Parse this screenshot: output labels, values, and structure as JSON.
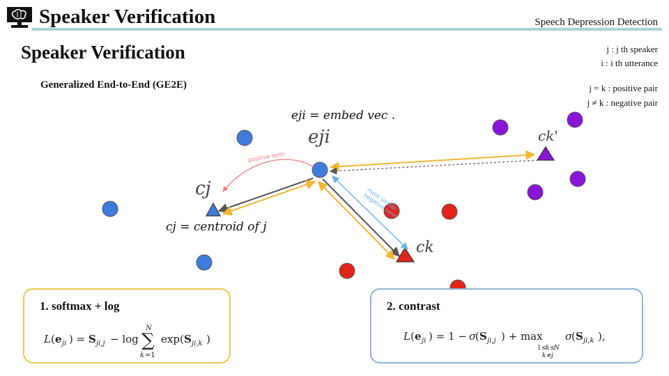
{
  "header": {
    "title": "Speaker Verification",
    "right_label": "Speech Depression Detection",
    "logo_icon": "brain-monitor-icon"
  },
  "slide": {
    "title": "Speaker Verification",
    "subtitle": "Generalized End-to-End (GE2E)"
  },
  "legend": {
    "line1": "j : j th speaker",
    "line2": "i : i th utterance",
    "line3": "j = k : positive pair",
    "line4": "j ≠ k : negative pair"
  },
  "diagram": {
    "embed_label": "eji = embed vec .",
    "eji_label": "eji",
    "cj_label": "cj",
    "ck_label": "ck",
    "ckp_label": "ck'",
    "centroid_label": "cj = centroid of j",
    "positive_term": "positive term",
    "negative_term": "most similar negative term",
    "colors": {
      "blue": "#3f7bdc",
      "red": "#e3241c",
      "purple": "#8a14d8",
      "orange": "#f2b632",
      "sky": "#69b3ea",
      "pink": "#f07a7a"
    }
  },
  "boxes": {
    "softmax_title": "1. softmax + log",
    "contrast_title": "2. contrast"
  }
}
